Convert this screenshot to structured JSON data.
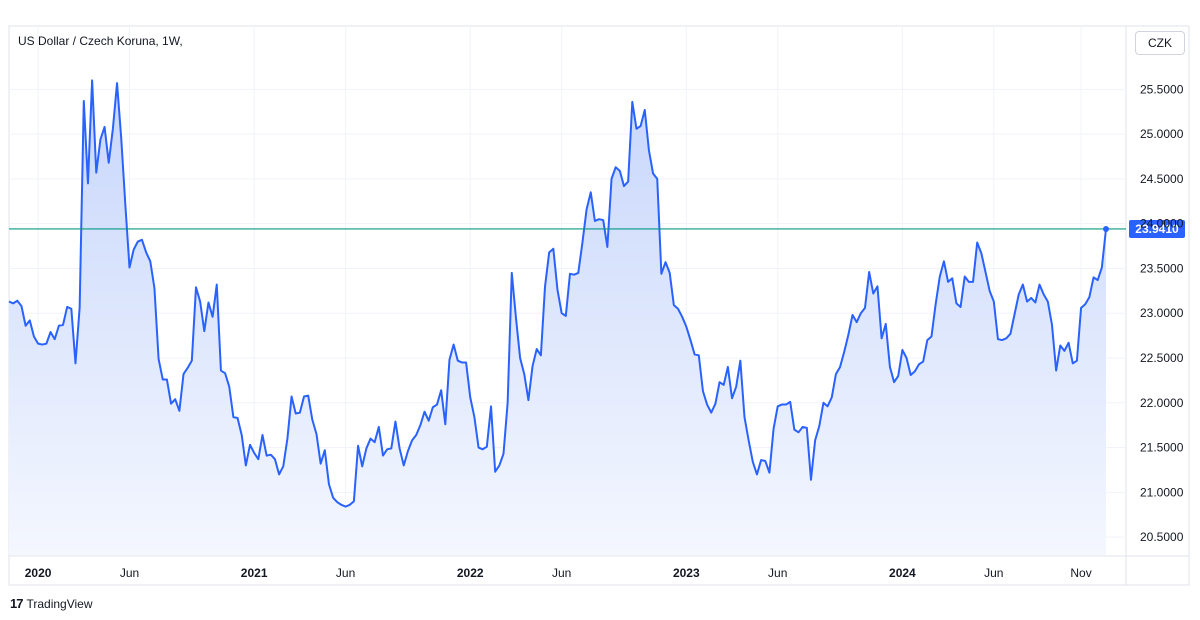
{
  "header": {
    "title": "US Dollar / Czech Koruna, 1W,",
    "currency": "CZK"
  },
  "footer": {
    "brand": "TradingView",
    "logo_text": "17"
  },
  "colors": {
    "line": "#2962ff",
    "area_top": "#c7d6fb",
    "area_bottom": "#f4f7fe",
    "price_line": "#089981",
    "label_bg": "#2962ff",
    "grid": "#f0f3fa",
    "axis_text": "#131722"
  },
  "chart_data": {
    "type": "area",
    "title": "US Dollar / Czech Koruna, 1W,",
    "series": [
      {
        "values": [
          23.13,
          23.11,
          23.14,
          23.08,
          22.86,
          22.92,
          22.74,
          22.66,
          22.65,
          22.66,
          22.79,
          22.71,
          22.86,
          22.87,
          23.07,
          23.05,
          22.44,
          23.06,
          25.37,
          24.45,
          25.6,
          24.57,
          24.94,
          25.08,
          24.68,
          25.06,
          25.57,
          24.96,
          24.21,
          23.51,
          23.71,
          23.8,
          23.82,
          23.68,
          23.58,
          23.28,
          22.49,
          22.26,
          22.26,
          21.99,
          22.04,
          21.91,
          22.32,
          22.39,
          22.47,
          23.29,
          23.13,
          22.8,
          23.12,
          22.96,
          23.32,
          22.36,
          22.33,
          22.18,
          21.84,
          21.83,
          21.64,
          21.3,
          21.53,
          21.44,
          21.37,
          21.64,
          21.41,
          21.42,
          21.37,
          21.2,
          21.29,
          21.6,
          22.07,
          21.88,
          21.89,
          22.07,
          22.08,
          21.81,
          21.65,
          21.32,
          21.47,
          21.09,
          20.94,
          20.89,
          20.86,
          20.84,
          20.86,
          20.9,
          21.52,
          21.29,
          21.49,
          21.6,
          21.56,
          21.73,
          21.41,
          21.48,
          21.49,
          21.79,
          21.49,
          21.3,
          21.46,
          21.58,
          21.64,
          21.75,
          21.9,
          21.8,
          21.95,
          21.98,
          22.14,
          21.76,
          22.48,
          22.65,
          22.47,
          22.45,
          22.45,
          22.06,
          21.84,
          21.5,
          21.48,
          21.51,
          21.96,
          21.23,
          21.3,
          21.43,
          22.0,
          23.45,
          22.95,
          22.5,
          22.32,
          22.03,
          22.41,
          22.6,
          22.53,
          23.3,
          23.68,
          23.72,
          23.26,
          23.0,
          22.97,
          23.44,
          23.43,
          23.45,
          23.79,
          24.16,
          24.35,
          24.03,
          24.05,
          24.04,
          23.74,
          24.5,
          24.63,
          24.59,
          24.42,
          24.47,
          25.36,
          25.06,
          25.09,
          25.27,
          24.82,
          24.56,
          24.5,
          23.44,
          23.57,
          23.45,
          23.09,
          23.05,
          22.96,
          22.85,
          22.7,
          22.54,
          22.53,
          22.13,
          21.98,
          21.89,
          21.99,
          22.23,
          22.2,
          22.4,
          22.05,
          22.18,
          22.47,
          21.84,
          21.58,
          21.34,
          21.2,
          21.36,
          21.35,
          21.22,
          21.71,
          21.96,
          21.98,
          21.98,
          22.01,
          21.7,
          21.67,
          21.73,
          21.72,
          21.14,
          21.58,
          21.74,
          22.0,
          21.96,
          22.06,
          22.32,
          22.4,
          22.57,
          22.76,
          22.98,
          22.9,
          23.0,
          23.06,
          23.46,
          23.22,
          23.3,
          22.72,
          22.88,
          22.4,
          22.23,
          22.3,
          22.59,
          22.5,
          22.31,
          22.35,
          22.43,
          22.46,
          22.7,
          22.74,
          23.1,
          23.41,
          23.58,
          23.35,
          23.39,
          23.11,
          23.07,
          23.41,
          23.35,
          23.35,
          23.79,
          23.67,
          23.46,
          23.25,
          23.13,
          22.71,
          22.7,
          22.72,
          22.77,
          22.99,
          23.21,
          23.32,
          23.13,
          23.17,
          23.12,
          23.32,
          23.21,
          23.13,
          22.87,
          22.36,
          22.64,
          22.58,
          22.67,
          22.44,
          22.47,
          23.06,
          23.1,
          23.18,
          23.4,
          23.37,
          23.51,
          23.941
        ]
      }
    ],
    "current_value": 23.941,
    "current_label": "23.9410",
    "y_ticks": [
      "20.5000",
      "21.0000",
      "21.5000",
      "22.0000",
      "22.5000",
      "23.0000",
      "23.5000",
      "24.0000",
      "24.5000",
      "25.0000",
      "25.5000"
    ],
    "y_tick_values": [
      20.5,
      21.0,
      21.5,
      22.0,
      22.5,
      23.0,
      23.5,
      24.0,
      24.5,
      25.0,
      25.5
    ],
    "x_ticks": [
      {
        "label": "2020",
        "index": 7,
        "bold": true
      },
      {
        "label": "Jun",
        "index": 29,
        "bold": false
      },
      {
        "label": "2021",
        "index": 59,
        "bold": true
      },
      {
        "label": "Jun",
        "index": 81,
        "bold": false
      },
      {
        "label": "2022",
        "index": 111,
        "bold": true
      },
      {
        "label": "Jun",
        "index": 133,
        "bold": false
      },
      {
        "label": "2023",
        "index": 163,
        "bold": true
      },
      {
        "label": "Jun",
        "index": 185,
        "bold": false
      },
      {
        "label": "2024",
        "index": 215,
        "bold": true
      },
      {
        "label": "Jun",
        "index": 237,
        "bold": false
      },
      {
        "label": "Nov",
        "index": 258,
        "bold": false
      }
    ],
    "ylim": [
      20.3,
      25.85
    ],
    "grid": true,
    "legend": "none"
  }
}
